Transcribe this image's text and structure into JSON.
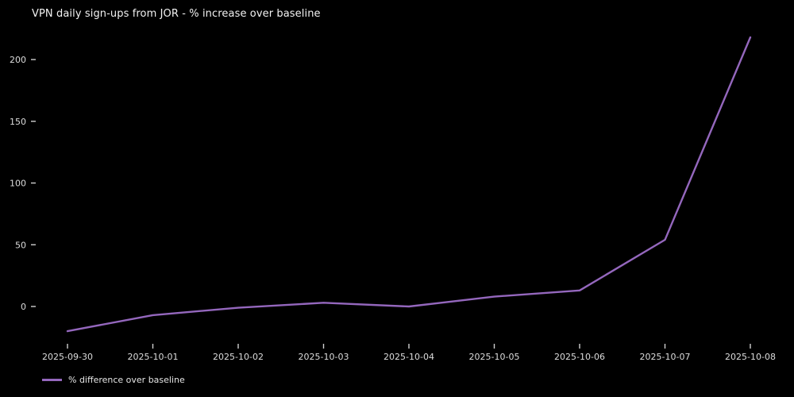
{
  "title": "VPN daily sign-ups from JOR - % increase over baseline",
  "colors": {
    "background": "#000000",
    "title_text": "#f2f2f2",
    "tick_text": "#dcdcdc",
    "tick_mark": "#cfcfcf",
    "line": "#9467bd"
  },
  "legend": {
    "label": "% difference over baseline"
  },
  "chart_data": {
    "type": "line",
    "title": "VPN daily sign-ups from JOR - % increase over baseline",
    "categories": [
      "2025-09-30",
      "2025-10-01",
      "2025-10-02",
      "2025-10-03",
      "2025-10-04",
      "2025-10-05",
      "2025-10-06",
      "2025-10-07",
      "2025-10-08"
    ],
    "series": [
      {
        "name": "% difference over baseline",
        "values": [
          -20,
          -7,
          -1,
          3,
          0,
          8,
          13,
          54,
          218
        ]
      }
    ],
    "xlabel": "",
    "ylabel": "",
    "yticks": [
      0,
      50,
      100,
      150,
      200
    ],
    "ylim": [
      -28,
      226
    ],
    "grid": false,
    "legend_position": "lower-left",
    "line_color": "#9467bd",
    "background": "#000000"
  }
}
